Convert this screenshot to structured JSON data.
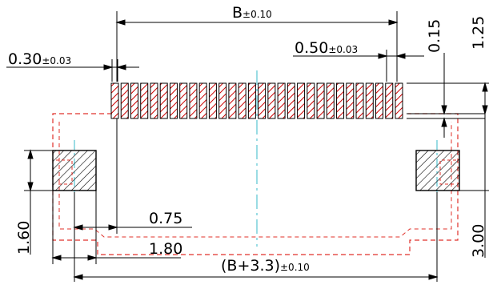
{
  "drawing": {
    "labels": {
      "pitch_width": "B±0.10",
      "pitch_main": "B",
      "pitch_tol": "±0.10",
      "pin_width_main": "0.30",
      "pin_width_tol": "±0.03",
      "pitch_main_val": "0.50",
      "pitch_tol_val": "±0.03",
      "gap": "0.15",
      "pad_length": "1.25",
      "inner_offset": "0.75",
      "mount_width": "1.80",
      "mount_height": "1.60",
      "body_height": "3.00",
      "overall_main": "(B+3.3)",
      "overall_tol": "±0.10"
    },
    "pin_count": 30,
    "colors": {
      "line": "#000000",
      "hatch": "#cc0000",
      "outline": "#e0302a",
      "centerline": "#35b8c8"
    }
  }
}
